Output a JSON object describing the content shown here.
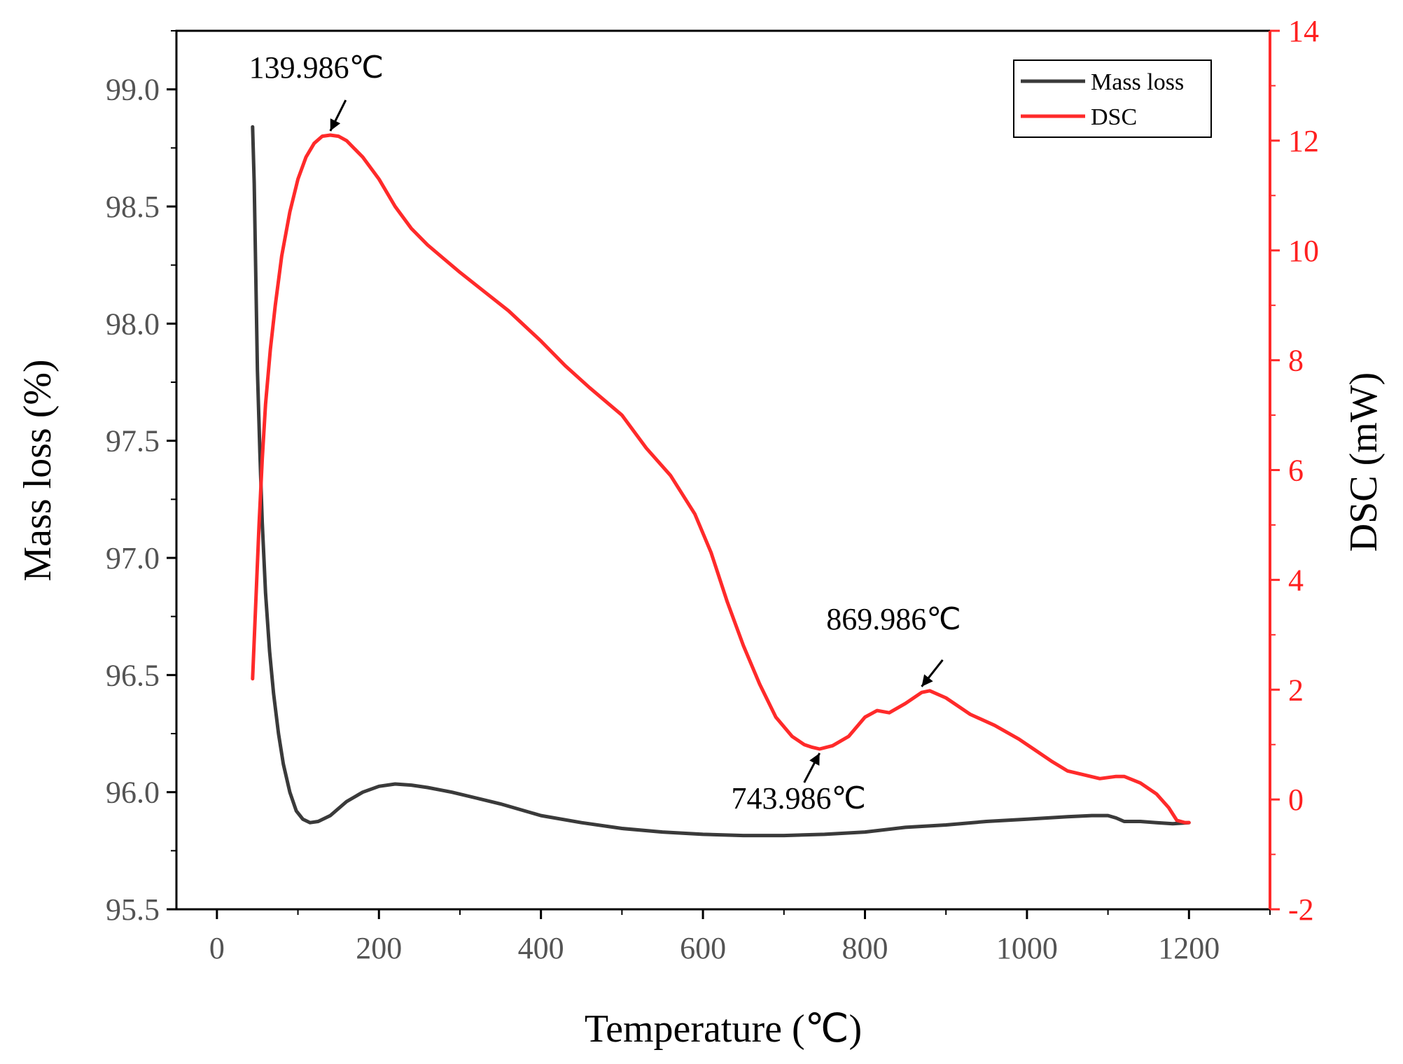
{
  "chart_data": {
    "type": "line",
    "xlabel": "Temperature (℃)",
    "ylabel_left": "Mass loss (%)",
    "ylabel_right": "DSC (mW)",
    "xlim": [
      -50,
      1300
    ],
    "ylim_left": [
      95.5,
      99.25
    ],
    "ylim_right": [
      -2,
      14
    ],
    "x_ticks": [
      0,
      200,
      400,
      600,
      800,
      1000,
      1200
    ],
    "y_left_ticks": [
      "95.5",
      "96.0",
      "96.5",
      "97.0",
      "97.5",
      "98.0",
      "98.5",
      "99.0"
    ],
    "y_right_ticks": [
      "-2",
      "0",
      "2",
      "4",
      "6",
      "8",
      "10",
      "12",
      "14"
    ],
    "legend": {
      "position": "top-right",
      "entries": [
        {
          "label": "Mass loss",
          "color": "#3a3a3a"
        },
        {
          "label": "DSC",
          "color": "#ff2a2a"
        }
      ]
    },
    "series": [
      {
        "name": "Mass loss",
        "axis": "left",
        "color": "#3a3a3a",
        "points": [
          [
            44,
            98.84
          ],
          [
            46,
            98.6
          ],
          [
            48,
            98.2
          ],
          [
            50,
            97.8
          ],
          [
            53,
            97.45
          ],
          [
            56,
            97.15
          ],
          [
            60,
            96.85
          ],
          [
            65,
            96.6
          ],
          [
            70,
            96.42
          ],
          [
            76,
            96.25
          ],
          [
            82,
            96.12
          ],
          [
            90,
            96.0
          ],
          [
            98,
            95.92
          ],
          [
            106,
            95.885
          ],
          [
            115,
            95.87
          ],
          [
            125,
            95.875
          ],
          [
            140,
            95.9
          ],
          [
            160,
            95.96
          ],
          [
            180,
            96.0
          ],
          [
            200,
            96.025
          ],
          [
            220,
            96.035
          ],
          [
            240,
            96.03
          ],
          [
            260,
            96.02
          ],
          [
            290,
            96.0
          ],
          [
            320,
            95.975
          ],
          [
            350,
            95.95
          ],
          [
            400,
            95.9
          ],
          [
            450,
            95.87
          ],
          [
            500,
            95.845
          ],
          [
            550,
            95.83
          ],
          [
            600,
            95.82
          ],
          [
            650,
            95.815
          ],
          [
            700,
            95.815
          ],
          [
            750,
            95.82
          ],
          [
            800,
            95.83
          ],
          [
            850,
            95.85
          ],
          [
            900,
            95.86
          ],
          [
            950,
            95.875
          ],
          [
            1000,
            95.885
          ],
          [
            1050,
            95.895
          ],
          [
            1080,
            95.9
          ],
          [
            1100,
            95.9
          ],
          [
            1110,
            95.89
          ],
          [
            1120,
            95.875
          ],
          [
            1140,
            95.875
          ],
          [
            1160,
            95.87
          ],
          [
            1180,
            95.865
          ],
          [
            1200,
            95.87
          ]
        ]
      },
      {
        "name": "DSC",
        "axis": "right",
        "color": "#ff2a2a",
        "points": [
          [
            44,
            2.2
          ],
          [
            48,
            3.6
          ],
          [
            52,
            5.0
          ],
          [
            56,
            6.2
          ],
          [
            60,
            7.2
          ],
          [
            66,
            8.2
          ],
          [
            72,
            9.0
          ],
          [
            80,
            9.9
          ],
          [
            90,
            10.7
          ],
          [
            100,
            11.3
          ],
          [
            110,
            11.7
          ],
          [
            120,
            11.95
          ],
          [
            130,
            12.08
          ],
          [
            140,
            12.1
          ],
          [
            150,
            12.08
          ],
          [
            160,
            12.0
          ],
          [
            180,
            11.7
          ],
          [
            200,
            11.3
          ],
          [
            220,
            10.8
          ],
          [
            240,
            10.4
          ],
          [
            260,
            10.1
          ],
          [
            280,
            9.85
          ],
          [
            300,
            9.6
          ],
          [
            330,
            9.25
          ],
          [
            360,
            8.9
          ],
          [
            400,
            8.35
          ],
          [
            430,
            7.9
          ],
          [
            460,
            7.5
          ],
          [
            500,
            7.0
          ],
          [
            530,
            6.4
          ],
          [
            560,
            5.9
          ],
          [
            590,
            5.2
          ],
          [
            610,
            4.5
          ],
          [
            630,
            3.6
          ],
          [
            650,
            2.8
          ],
          [
            670,
            2.1
          ],
          [
            690,
            1.5
          ],
          [
            710,
            1.15
          ],
          [
            725,
            1.0
          ],
          [
            735,
            0.95
          ],
          [
            744,
            0.92
          ],
          [
            760,
            0.98
          ],
          [
            780,
            1.15
          ],
          [
            800,
            1.5
          ],
          [
            815,
            1.62
          ],
          [
            830,
            1.58
          ],
          [
            850,
            1.75
          ],
          [
            870,
            1.95
          ],
          [
            880,
            1.98
          ],
          [
            900,
            1.85
          ],
          [
            930,
            1.55
          ],
          [
            960,
            1.35
          ],
          [
            990,
            1.1
          ],
          [
            1010,
            0.9
          ],
          [
            1030,
            0.7
          ],
          [
            1050,
            0.52
          ],
          [
            1070,
            0.45
          ],
          [
            1090,
            0.38
          ],
          [
            1110,
            0.42
          ],
          [
            1120,
            0.42
          ],
          [
            1140,
            0.3
          ],
          [
            1160,
            0.1
          ],
          [
            1175,
            -0.15
          ],
          [
            1185,
            -0.38
          ],
          [
            1195,
            -0.42
          ],
          [
            1200,
            -0.42
          ]
        ]
      }
    ],
    "annotations": [
      {
        "label": "139.986℃",
        "x": 139.986,
        "y_right": 12.1
      },
      {
        "label": "743.986℃",
        "x": 743.986,
        "y_right": 0.92
      },
      {
        "label": "869.986℃",
        "x": 869.986,
        "y_right": 1.98
      }
    ]
  }
}
